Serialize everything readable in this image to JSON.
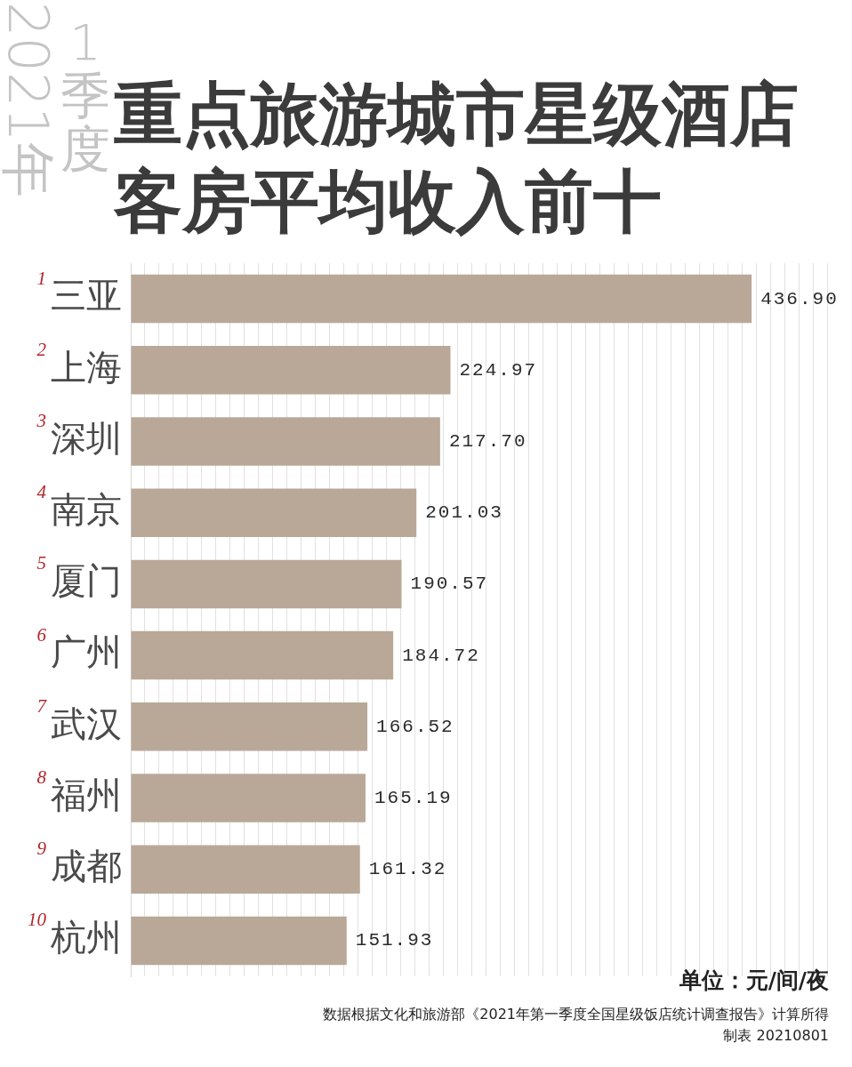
{
  "chart_data": {
    "type": "bar",
    "orientation": "horizontal",
    "title": "重点旅游城市星级酒店客房平均收入前十",
    "categories": [
      "三亚",
      "上海",
      "深圳",
      "南京",
      "厦门",
      "广州",
      "武汉",
      "福州",
      "成都",
      "杭州"
    ],
    "values": [
      436.9,
      224.97,
      217.7,
      201.03,
      190.57,
      184.72,
      166.52,
      165.19,
      161.32,
      151.93
    ],
    "value_labels": [
      "436.90",
      "224.97",
      "217.70",
      "201.03",
      "190.57",
      "184.72",
      "166.52",
      "165.19",
      "161.32",
      "151.93"
    ],
    "color": "#b9a898",
    "xlim": [
      0,
      490
    ],
    "xticks": [
      {
        "value": 0,
        "label": null
      },
      {
        "value": 10,
        "label": null
      },
      {
        "value": 20,
        "label": null
      },
      {
        "value": 30,
        "label": null
      },
      {
        "value": 40,
        "label": null
      },
      {
        "value": 50,
        "label": null
      },
      {
        "value": 60,
        "label": null
      },
      {
        "value": 70,
        "label": null
      },
      {
        "value": 80,
        "label": null
      },
      {
        "value": 90,
        "label": null
      },
      {
        "value": 100,
        "label": null
      },
      {
        "value": 110,
        "label": null
      },
      {
        "value": 120,
        "label": null
      },
      {
        "value": 130,
        "label": null
      },
      {
        "value": 140,
        "label": null
      },
      {
        "value": 150,
        "label": null
      },
      {
        "value": 160,
        "label": null
      },
      {
        "value": 170,
        "label": null
      },
      {
        "value": 180,
        "label": null
      },
      {
        "value": 190,
        "label": null
      },
      {
        "value": 200,
        "label": null
      },
      {
        "value": 210,
        "label": null
      },
      {
        "value": 220,
        "label": null
      },
      {
        "value": 230,
        "label": null
      },
      {
        "value": 240,
        "label": null
      },
      {
        "value": 250,
        "label": null
      },
      {
        "value": 260,
        "label": null
      },
      {
        "value": 270,
        "label": null
      },
      {
        "value": 280,
        "label": null
      },
      {
        "value": 290,
        "label": null
      },
      {
        "value": 300,
        "label": null
      },
      {
        "value": 310,
        "label": null
      },
      {
        "value": 320,
        "label": null
      },
      {
        "value": 330,
        "label": null
      },
      {
        "value": 340,
        "label": null
      },
      {
        "value": 350,
        "label": null
      },
      {
        "value": 360,
        "label": null
      },
      {
        "value": 370,
        "label": null
      },
      {
        "value": 380,
        "label": null
      },
      {
        "value": 390,
        "label": null
      },
      {
        "value": 400,
        "label": null
      },
      {
        "value": 410,
        "label": null
      },
      {
        "value": 420,
        "label": null
      },
      {
        "value": 430,
        "label": null
      },
      {
        "value": 440,
        "label": null
      },
      {
        "value": 450,
        "label": null
      },
      {
        "value": 460,
        "label": null
      },
      {
        "value": 470,
        "label": null
      },
      {
        "value": 480,
        "label": null
      },
      {
        "value": 490,
        "label": null
      }
    ],
    "tick_labels": "y",
    "grid": "x",
    "annotations": [
      "2021年",
      "1季度",
      "单位：元/间/夜",
      "数据根据文化和旅游部《2021年第一季度全国星级饭店统计调查报告》计算所得",
      "制表 20210801",
      "1",
      "2",
      "3",
      "4",
      "5",
      "6",
      "7",
      "8",
      "9",
      "10"
    ]
  }
}
